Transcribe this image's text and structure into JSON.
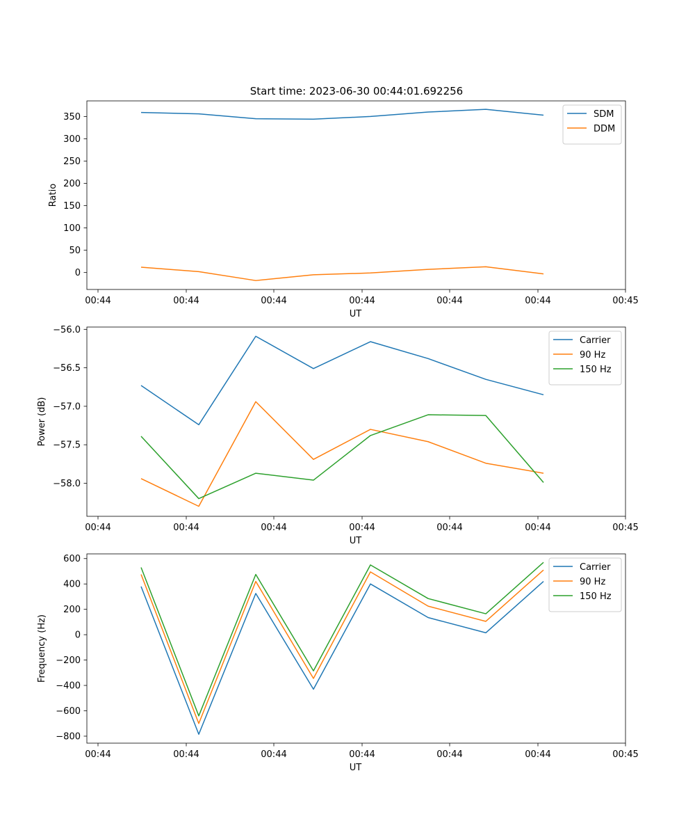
{
  "figure_title": "Start time: 2023-06-30 00:44:01.692256",
  "colors": {
    "blue": "#1f77b4",
    "orange": "#ff7f0e",
    "green": "#2ca02c"
  },
  "chart_data": [
    {
      "type": "line",
      "title": "Start time: 2023-06-30 00:44:01.692256",
      "xlabel": "UT",
      "ylabel": "Ratio",
      "x_tick_labels": [
        "00:44",
        "00:44",
        "00:44",
        "00:44",
        "00:44",
        "00:44",
        "00:45"
      ],
      "y_ticks": [
        0,
        50,
        100,
        150,
        200,
        250,
        300,
        350
      ],
      "y_tick_labels": [
        "0",
        "50",
        "100",
        "150",
        "200",
        "250",
        "300",
        "350"
      ],
      "ylim": [
        -38,
        385
      ],
      "legend_position": "top-right",
      "grid": false,
      "series": [
        {
          "name": "SDM",
          "color": "#1f77b4",
          "values": [
            359,
            356,
            345,
            344,
            350,
            360,
            366,
            353
          ]
        },
        {
          "name": "DDM",
          "color": "#ff7f0e",
          "values": [
            12,
            2,
            -18,
            -5,
            -1,
            7,
            13,
            -3
          ]
        }
      ]
    },
    {
      "type": "line",
      "xlabel": "UT",
      "ylabel": "Power (dB)",
      "x_tick_labels": [
        "00:44",
        "00:44",
        "00:44",
        "00:44",
        "00:44",
        "00:44",
        "00:45"
      ],
      "y_ticks": [
        -58.0,
        -57.5,
        -57.0,
        -56.5,
        -56.0
      ],
      "y_tick_labels": [
        "−58.0",
        "−57.5",
        "−57.0",
        "−56.5",
        "−56.0"
      ],
      "ylim": [
        -58.43,
        -55.97
      ],
      "legend_position": "top-right",
      "grid": false,
      "series": [
        {
          "name": "Carrier",
          "color": "#1f77b4",
          "values": [
            -56.73,
            -57.24,
            -56.09,
            -56.51,
            -56.16,
            -56.38,
            -56.65,
            -56.85
          ]
        },
        {
          "name": "90 Hz",
          "color": "#ff7f0e",
          "values": [
            -57.94,
            -58.3,
            -56.94,
            -57.69,
            -57.3,
            -57.46,
            -57.74,
            -57.87
          ]
        },
        {
          "name": "150 Hz",
          "color": "#2ca02c",
          "values": [
            -57.39,
            -58.2,
            -57.87,
            -57.96,
            -57.38,
            -57.11,
            -57.12,
            -57.99
          ]
        }
      ]
    },
    {
      "type": "line",
      "xlabel": "UT",
      "ylabel": "Frequency (Hz)",
      "x_tick_labels": [
        "00:44",
        "00:44",
        "00:44",
        "00:44",
        "00:44",
        "00:44",
        "00:45"
      ],
      "y_ticks": [
        -800,
        -600,
        -400,
        -200,
        0,
        200,
        400,
        600
      ],
      "y_tick_labels": [
        "−800",
        "−600",
        "−400",
        "−200",
        "0",
        "200",
        "400",
        "600"
      ],
      "ylim": [
        -855,
        637
      ],
      "legend_position": "top-right",
      "grid": false,
      "series": [
        {
          "name": "Carrier",
          "color": "#1f77b4",
          "values": [
            380,
            -785,
            325,
            -430,
            400,
            135,
            15,
            420
          ]
        },
        {
          "name": "90 Hz",
          "color": "#ff7f0e",
          "values": [
            475,
            -700,
            420,
            -345,
            495,
            225,
            105,
            510
          ]
        },
        {
          "name": "150 Hz",
          "color": "#2ca02c",
          "values": [
            530,
            -640,
            475,
            -285,
            550,
            285,
            165,
            570
          ]
        }
      ]
    }
  ]
}
